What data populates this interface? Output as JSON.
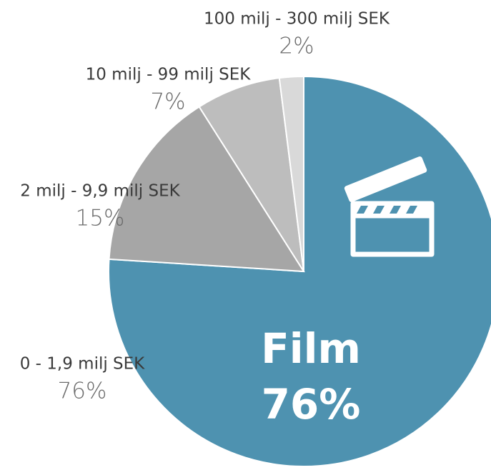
{
  "chart_data": {
    "type": "pie",
    "categories": [
      "0 - 1,9 milj SEK",
      "2 milj - 9,9 milj SEK",
      "10 milj - 99 milj SEK",
      "100 milj - 300 milj SEK"
    ],
    "values": [
      76,
      15,
      7,
      2
    ],
    "value_labels": [
      "76%",
      "15%",
      "7%",
      "2%"
    ],
    "colors": [
      "#4e92b0",
      "#a6a6a6",
      "#bdbdbd",
      "#d9d9d9"
    ],
    "annotation": "Film"
  }
}
